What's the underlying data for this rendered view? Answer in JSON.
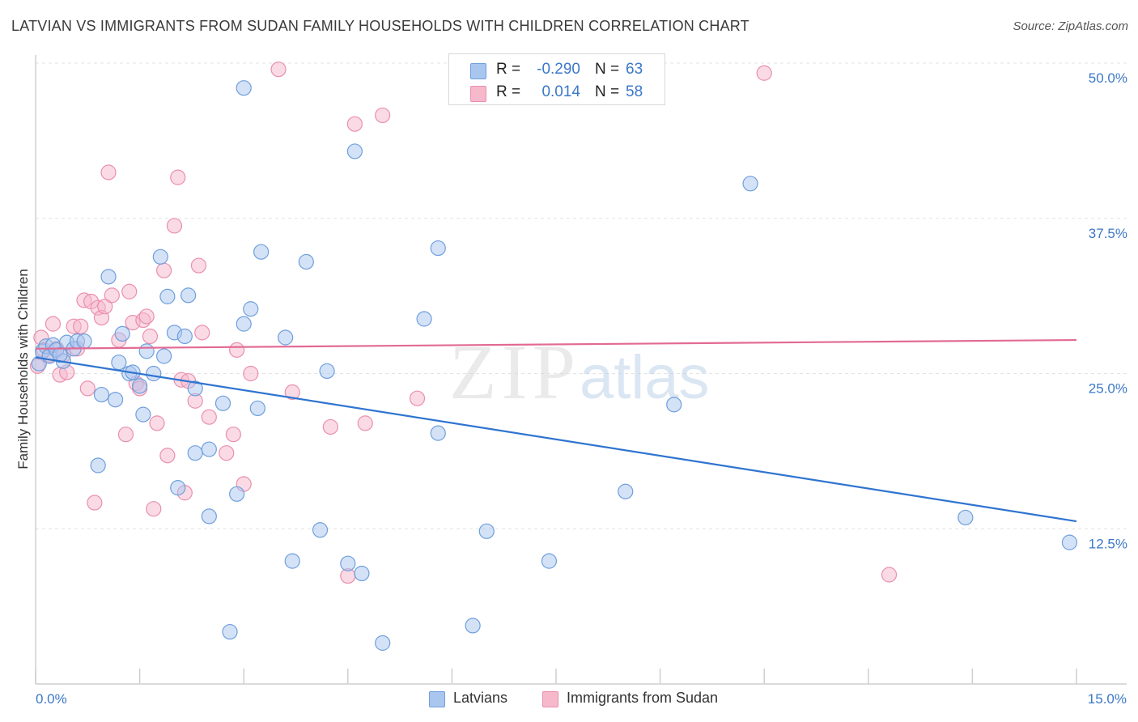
{
  "title": "LATVIAN VS IMMIGRANTS FROM SUDAN FAMILY HOUSEHOLDS WITH CHILDREN CORRELATION CHART",
  "source": "Source: ZipAtlas.com",
  "watermark": {
    "zip": "ZIP",
    "atlas": "atlas"
  },
  "legend": {
    "r_label": "R =",
    "n_label": "N =",
    "rows": [
      {
        "r": "-0.290",
        "n": "63",
        "color": "#a9c6ef"
      },
      {
        "r": "0.014",
        "n": "58",
        "color": "#f6b8cb"
      }
    ]
  },
  "bottom_legend": [
    {
      "label": "Latvians",
      "color": "#a9c6ef"
    },
    {
      "label": "Immigrants from Sudan",
      "color": "#f6b8cb"
    }
  ],
  "colors": {
    "blue_fill": "#a9c6ef",
    "blue_stroke": "#6f9fdc",
    "blue_line": "#2f74d0",
    "pink_fill": "#f6b8cb",
    "pink_stroke": "#ea8fad",
    "pink_line": "#e26a94",
    "grid": "#e3e3e3",
    "tick_text": "#3b78c8"
  },
  "chart_data": {
    "type": "scatter",
    "title": "LATVIAN VS IMMIGRANTS FROM SUDAN FAMILY HOUSEHOLDS WITH CHILDREN CORRELATION CHART",
    "xlabel": "",
    "ylabel": "Family Households with Children",
    "xlim": [
      0,
      15
    ],
    "ylim": [
      0,
      50
    ],
    "x_tick_labels": [
      "0.0%",
      "15.0%"
    ],
    "y_ticks": [
      12.5,
      25.0,
      37.5,
      50.0
    ],
    "y_tick_labels": [
      "12.5%",
      "25.0%",
      "37.5%",
      "50.0%"
    ],
    "grid": true,
    "legend_position": "top-center",
    "series": [
      {
        "name": "Latvians",
        "r": -0.29,
        "n": 63,
        "trend": {
          "x": [
            0,
            15
          ],
          "y": [
            26.3,
            13.1
          ]
        },
        "points": [
          [
            0.05,
            25.8
          ],
          [
            0.1,
            26.8
          ],
          [
            0.15,
            27.2
          ],
          [
            0.2,
            26.4
          ],
          [
            0.25,
            27.3
          ],
          [
            0.3,
            26.9
          ],
          [
            0.4,
            26.0
          ],
          [
            0.45,
            27.5
          ],
          [
            0.55,
            27.0
          ],
          [
            0.6,
            27.6
          ],
          [
            0.7,
            27.6
          ],
          [
            0.9,
            17.6
          ],
          [
            0.95,
            23.3
          ],
          [
            1.05,
            32.8
          ],
          [
            1.15,
            22.9
          ],
          [
            1.2,
            25.9
          ],
          [
            1.25,
            28.2
          ],
          [
            1.35,
            25.0
          ],
          [
            1.4,
            25.1
          ],
          [
            1.5,
            24.0
          ],
          [
            1.55,
            21.7
          ],
          [
            1.6,
            26.8
          ],
          [
            1.7,
            25.0
          ],
          [
            1.8,
            34.4
          ],
          [
            1.85,
            26.4
          ],
          [
            1.9,
            31.2
          ],
          [
            2.0,
            28.3
          ],
          [
            2.05,
            15.8
          ],
          [
            2.15,
            28.0
          ],
          [
            2.2,
            31.3
          ],
          [
            2.3,
            23.8
          ],
          [
            2.3,
            18.6
          ],
          [
            2.5,
            18.9
          ],
          [
            2.5,
            13.5
          ],
          [
            2.7,
            22.6
          ],
          [
            2.8,
            4.2
          ],
          [
            2.9,
            15.3
          ],
          [
            3.0,
            29.0
          ],
          [
            3.1,
            30.2
          ],
          [
            3.2,
            22.2
          ],
          [
            3.25,
            34.8
          ],
          [
            3.6,
            27.9
          ],
          [
            3.7,
            9.9
          ],
          [
            3.9,
            34.0
          ],
          [
            4.1,
            12.4
          ],
          [
            4.2,
            25.2
          ],
          [
            4.5,
            9.7
          ],
          [
            4.6,
            42.9
          ],
          [
            4.7,
            8.9
          ],
          [
            5.0,
            3.3
          ],
          [
            5.6,
            29.4
          ],
          [
            5.8,
            20.2
          ],
          [
            5.8,
            35.1
          ],
          [
            6.3,
            4.7
          ],
          [
            6.5,
            12.3
          ],
          [
            7.4,
            9.9
          ],
          [
            8.5,
            15.5
          ],
          [
            9.2,
            22.5
          ],
          [
            10.3,
            40.3
          ],
          [
            13.4,
            13.4
          ],
          [
            14.9,
            11.4
          ],
          [
            3.0,
            48.0
          ],
          [
            0.35,
            26.5
          ]
        ]
      },
      {
        "name": "Immigrants from Sudan",
        "r": 0.014,
        "n": 58,
        "trend": {
          "x": [
            0,
            15
          ],
          "y": [
            27.0,
            27.7
          ]
        },
        "points": [
          [
            0.03,
            25.6
          ],
          [
            0.08,
            27.9
          ],
          [
            0.12,
            26.9
          ],
          [
            0.2,
            26.5
          ],
          [
            0.25,
            29.0
          ],
          [
            0.3,
            27.0
          ],
          [
            0.35,
            24.9
          ],
          [
            0.4,
            26.5
          ],
          [
            0.45,
            25.1
          ],
          [
            0.55,
            28.8
          ],
          [
            0.6,
            27.0
          ],
          [
            0.65,
            28.8
          ],
          [
            0.7,
            30.9
          ],
          [
            0.75,
            23.8
          ],
          [
            0.8,
            30.8
          ],
          [
            0.85,
            14.6
          ],
          [
            0.9,
            30.3
          ],
          [
            0.95,
            29.5
          ],
          [
            1.0,
            30.4
          ],
          [
            1.05,
            41.2
          ],
          [
            1.1,
            31.3
          ],
          [
            1.2,
            27.7
          ],
          [
            1.3,
            20.1
          ],
          [
            1.35,
            31.6
          ],
          [
            1.4,
            29.1
          ],
          [
            1.45,
            24.2
          ],
          [
            1.5,
            23.8
          ],
          [
            1.55,
            29.3
          ],
          [
            1.6,
            29.6
          ],
          [
            1.65,
            28.0
          ],
          [
            1.7,
            14.1
          ],
          [
            1.75,
            21.0
          ],
          [
            1.85,
            33.3
          ],
          [
            1.9,
            18.4
          ],
          [
            2.0,
            36.9
          ],
          [
            2.05,
            40.8
          ],
          [
            2.1,
            24.5
          ],
          [
            2.15,
            15.4
          ],
          [
            2.2,
            24.4
          ],
          [
            2.3,
            22.8
          ],
          [
            2.35,
            33.7
          ],
          [
            2.4,
            28.3
          ],
          [
            2.5,
            21.5
          ],
          [
            2.75,
            18.6
          ],
          [
            2.85,
            20.1
          ],
          [
            2.9,
            26.9
          ],
          [
            3.0,
            16.1
          ],
          [
            3.1,
            25.0
          ],
          [
            3.5,
            49.5
          ],
          [
            3.7,
            23.5
          ],
          [
            4.25,
            20.7
          ],
          [
            4.5,
            8.7
          ],
          [
            4.6,
            45.1
          ],
          [
            4.75,
            21.0
          ],
          [
            5.0,
            45.8
          ],
          [
            5.5,
            23.0
          ],
          [
            10.5,
            49.2
          ],
          [
            12.3,
            8.8
          ]
        ]
      }
    ]
  }
}
